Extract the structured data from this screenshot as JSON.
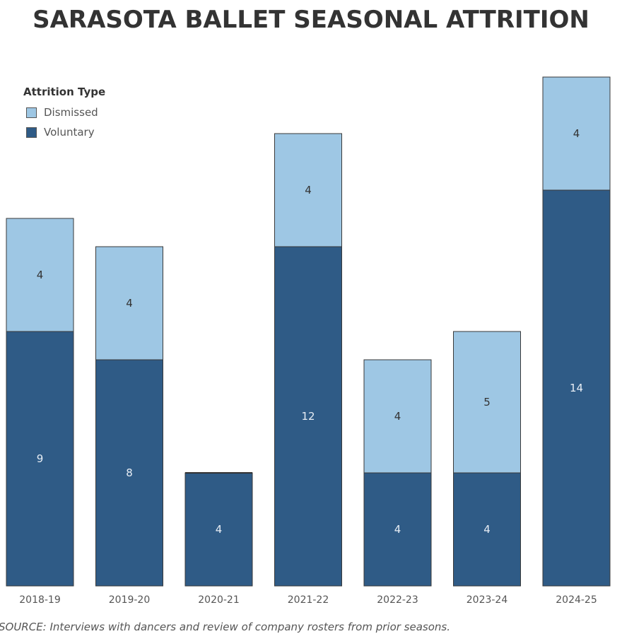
{
  "chart_data": {
    "type": "bar",
    "stacked": true,
    "title": "SARASOTA BALLET SEASONAL ATTRITION",
    "categories": [
      "2018-19",
      "2019-20",
      "2020-21",
      "2021-22",
      "2022-23",
      "2023-24",
      "2024-25"
    ],
    "series": [
      {
        "name": "Voluntary",
        "color": "#2f5b86",
        "values": [
          9,
          8,
          4,
          12,
          4,
          4,
          14
        ]
      },
      {
        "name": "Dismissed",
        "color": "#9ec7e4",
        "values": [
          4,
          4,
          0,
          4,
          4,
          5,
          4
        ]
      }
    ],
    "legend_title": "Attrition Type",
    "legend_position": "top-left",
    "ylim": [
      0,
      18
    ],
    "xlabel": "",
    "ylabel": "",
    "grid": false,
    "source": "SOURCE: Interviews with dancers and review of company rosters from prior seasons."
  }
}
